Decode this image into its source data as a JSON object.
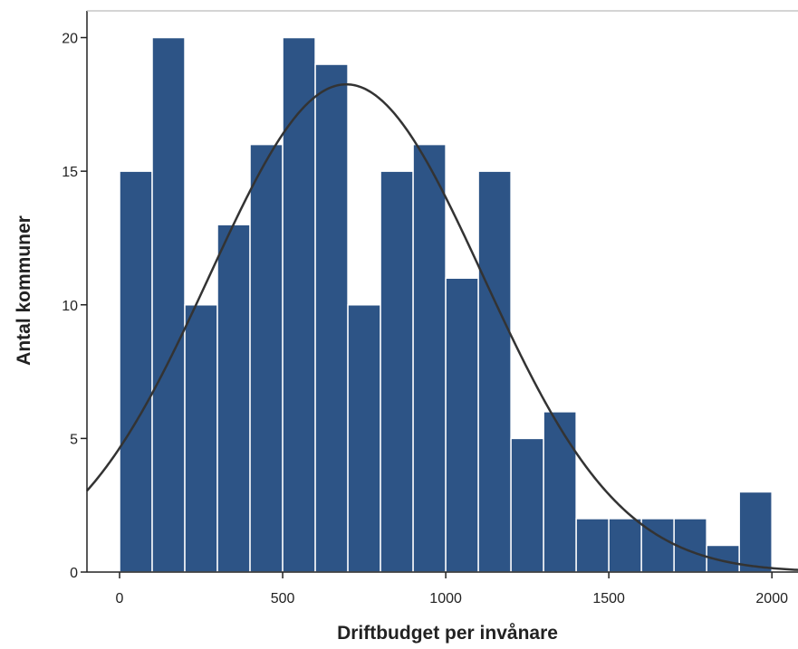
{
  "chart_data": {
    "type": "bar",
    "subtype": "histogram with normal curve",
    "xlabel": "Driftbudget per invånare",
    "ylabel": "Antal kommuner",
    "xlim": [
      -100,
      2080
    ],
    "ylim": [
      0,
      21
    ],
    "x_ticks": [
      0,
      500,
      1000,
      1500,
      2000
    ],
    "y_ticks": [
      0,
      5,
      10,
      15,
      20
    ],
    "bin_width": 100,
    "bins": [
      {
        "start": 0,
        "end": 100,
        "count": 15
      },
      {
        "start": 100,
        "end": 200,
        "count": 20
      },
      {
        "start": 200,
        "end": 300,
        "count": 10
      },
      {
        "start": 300,
        "end": 400,
        "count": 13
      },
      {
        "start": 400,
        "end": 500,
        "count": 16
      },
      {
        "start": 500,
        "end": 600,
        "count": 20
      },
      {
        "start": 600,
        "end": 700,
        "count": 19
      },
      {
        "start": 700,
        "end": 800,
        "count": 10
      },
      {
        "start": 800,
        "end": 900,
        "count": 15
      },
      {
        "start": 900,
        "end": 1000,
        "count": 16
      },
      {
        "start": 1000,
        "end": 1100,
        "count": 11
      },
      {
        "start": 1100,
        "end": 1200,
        "count": 15
      },
      {
        "start": 1200,
        "end": 1300,
        "count": 5
      },
      {
        "start": 1300,
        "end": 1400,
        "count": 6
      },
      {
        "start": 1400,
        "end": 1500,
        "count": 2
      },
      {
        "start": 1500,
        "end": 1600,
        "count": 2
      },
      {
        "start": 1600,
        "end": 1700,
        "count": 2
      },
      {
        "start": 1700,
        "end": 1800,
        "count": 2
      },
      {
        "start": 1800,
        "end": 1900,
        "count": 1
      },
      {
        "start": 1900,
        "end": 2000,
        "count": 3
      }
    ],
    "normal_curve": {
      "mean": 695,
      "sd": 420,
      "peak": 18.25
    },
    "bar_color": "#2d5486",
    "bar_edge_color": "#ffffff",
    "curve_color": "#333333",
    "grid": false
  }
}
